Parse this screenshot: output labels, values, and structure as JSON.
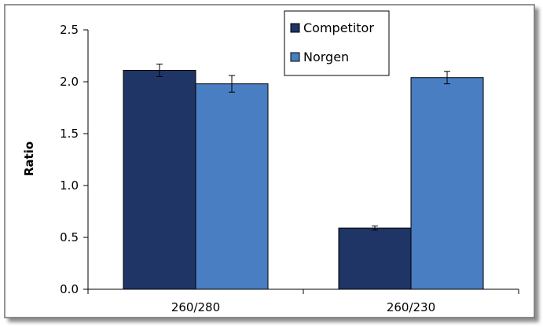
{
  "chart_data": {
    "type": "bar",
    "title": "",
    "xlabel": "",
    "ylabel": "Ratio",
    "categories": [
      "260/280",
      "260/230"
    ],
    "series": [
      {
        "name": "Competitor",
        "values": [
          2.11,
          0.59
        ],
        "errors": [
          0.06,
          0.02
        ],
        "color": "#1f3566"
      },
      {
        "name": "Norgen",
        "values": [
          1.98,
          2.04
        ],
        "errors": [
          0.08,
          0.06
        ],
        "color": "#4a7ec2"
      }
    ],
    "ylim": [
      0,
      2.5
    ],
    "yticks": [
      0.0,
      0.5,
      1.0,
      1.5,
      2.0,
      2.5
    ],
    "ytick_labels": [
      "0.0",
      "0.5",
      "1.0",
      "1.5",
      "2.0",
      "2.5"
    ],
    "grid": false,
    "legend": "top-center",
    "error_bars": true
  }
}
